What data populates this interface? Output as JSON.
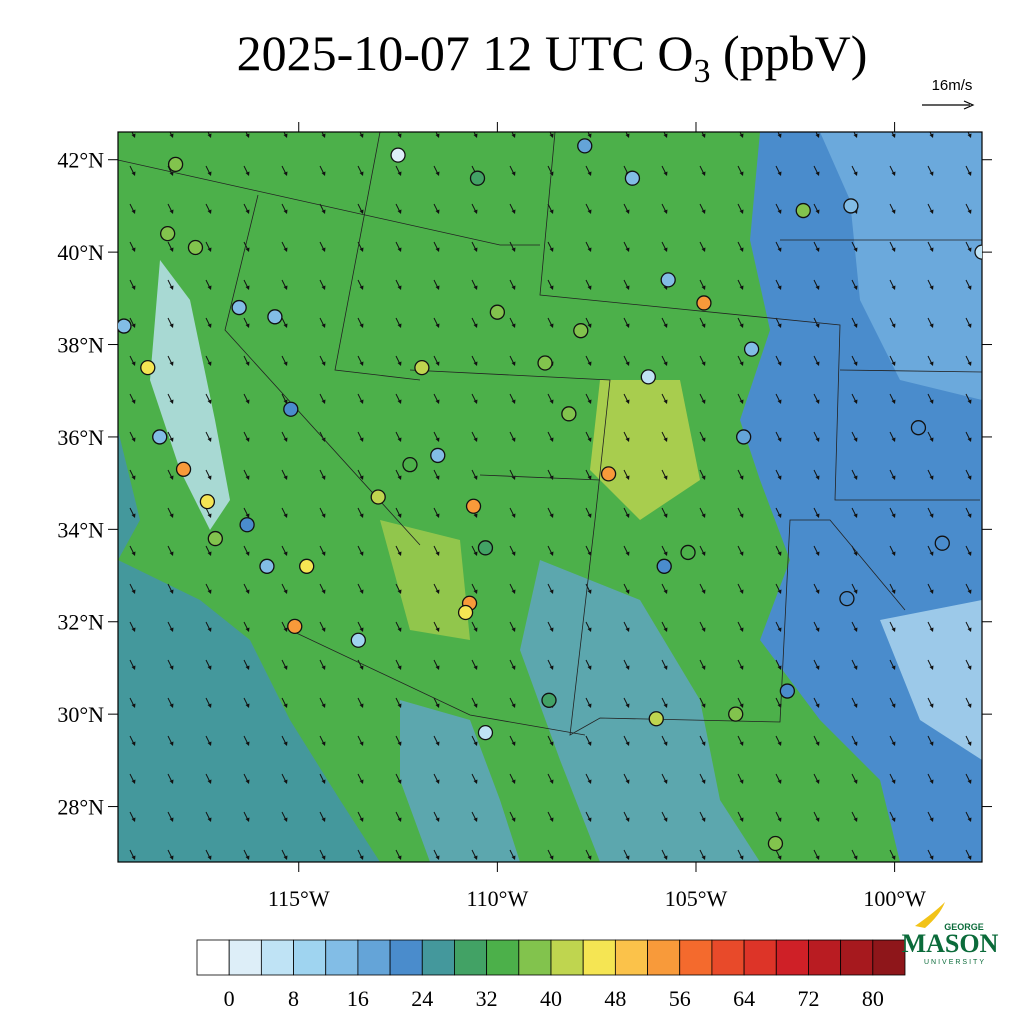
{
  "title": {
    "text": "2025-10-07 12 UTC O",
    "subscript": "3",
    "suffix": " (ppbV)"
  },
  "vector_reference": "16m/s",
  "lonlim": [
    -119.55,
    -97.8
  ],
  "latlim": [
    26.8,
    42.6
  ],
  "lat_ticks": [
    {
      "value": 42,
      "label": "42°N"
    },
    {
      "value": 40,
      "label": "40°N"
    },
    {
      "value": 38,
      "label": "38°N"
    },
    {
      "value": 36,
      "label": "36°N"
    },
    {
      "value": 34,
      "label": "34°N"
    },
    {
      "value": 32,
      "label": "32°N"
    },
    {
      "value": 30,
      "label": "30°N"
    },
    {
      "value": 28,
      "label": "28°N"
    }
  ],
  "lon_ticks": [
    {
      "value": -115,
      "label": "115°W"
    },
    {
      "value": -110,
      "label": "110°W"
    },
    {
      "value": -105,
      "label": "105°W"
    },
    {
      "value": -100,
      "label": "100°W"
    }
  ],
  "colorbar": {
    "lim": [
      -4,
      84
    ],
    "ticks": [
      0,
      8,
      16,
      24,
      32,
      40,
      48,
      56,
      64,
      72,
      80
    ],
    "colors": [
      "#ffffff",
      "#ddeef8",
      "#bfe3f5",
      "#9fd4f0",
      "#82bde6",
      "#64a4d8",
      "#4a8ccc",
      "#44989c",
      "#42a265",
      "#4cb04a",
      "#82c34d",
      "#bfd54f",
      "#f5e553",
      "#fbc24a",
      "#f89a3a",
      "#f46a2d",
      "#e84a2a",
      "#dd3428",
      "#cf2027",
      "#b91c22",
      "#a6191e",
      "#8e161a"
    ]
  },
  "stations": [
    {
      "lon": -112.5,
      "lat": 42.1,
      "value": 2
    },
    {
      "lon": -118.1,
      "lat": 41.9,
      "value": 38
    },
    {
      "lon": -118.3,
      "lat": 40.4,
      "value": 38
    },
    {
      "lon": -117.6,
      "lat": 40.1,
      "value": 36
    },
    {
      "lon": -118.8,
      "lat": 37.5,
      "value": 46
    },
    {
      "lon": -117.9,
      "lat": 35.3,
      "value": 54
    },
    {
      "lon": -117.3,
      "lat": 34.6,
      "value": 46
    },
    {
      "lon": -115.1,
      "lat": 31.9,
      "value": 54
    },
    {
      "lon": -114.8,
      "lat": 33.2,
      "value": 46
    },
    {
      "lon": -113.5,
      "lat": 31.6,
      "value": 10
    },
    {
      "lon": -110.6,
      "lat": 34.5,
      "value": 52
    },
    {
      "lon": -110.7,
      "lat": 32.4,
      "value": 52
    },
    {
      "lon": -110.8,
      "lat": 32.2,
      "value": 46
    },
    {
      "lon": -110.3,
      "lat": 29.6,
      "value": 6
    },
    {
      "lon": -112.2,
      "lat": 35.4,
      "value": 34
    },
    {
      "lon": -111.9,
      "lat": 37.5,
      "value": 40
    },
    {
      "lon": -113.0,
      "lat": 34.7,
      "value": 42
    },
    {
      "lon": -107.2,
      "lat": 35.2,
      "value": 52
    },
    {
      "lon": -104.8,
      "lat": 38.9,
      "value": 52
    },
    {
      "lon": -108.2,
      "lat": 36.5,
      "value": 38
    },
    {
      "lon": -108.8,
      "lat": 37.6,
      "value": 36
    },
    {
      "lon": -107.8,
      "lat": 42.3,
      "value": 16
    },
    {
      "lon": -106.2,
      "lat": 37.3,
      "value": 4
    },
    {
      "lon": -105.7,
      "lat": 39.4,
      "value": 14
    },
    {
      "lon": -103.6,
      "lat": 37.9,
      "value": 12
    },
    {
      "lon": -103.8,
      "lat": 36.0,
      "value": 18
    },
    {
      "lon": -101.1,
      "lat": 41.0,
      "value": 12
    },
    {
      "lon": -99.4,
      "lat": 36.2,
      "value": 20
    },
    {
      "lon": -98.8,
      "lat": 33.7,
      "value": 20
    },
    {
      "lon": -101.2,
      "lat": 32.5,
      "value": 20
    },
    {
      "lon": -102.7,
      "lat": 30.5,
      "value": 22
    },
    {
      "lon": -104.0,
      "lat": 30.0,
      "value": 36
    },
    {
      "lon": -106.0,
      "lat": 29.9,
      "value": 40
    },
    {
      "lon": -103.0,
      "lat": 27.2,
      "value": 36
    },
    {
      "lon": -105.2,
      "lat": 33.5,
      "value": 34
    },
    {
      "lon": -105.8,
      "lat": 33.2,
      "value": 20
    },
    {
      "lon": -110.3,
      "lat": 33.6,
      "value": 28
    },
    {
      "lon": -108.7,
      "lat": 30.3,
      "value": 28
    },
    {
      "lon": -115.2,
      "lat": 36.6,
      "value": 22
    },
    {
      "lon": -116.5,
      "lat": 38.8,
      "value": 14
    },
    {
      "lon": -115.6,
      "lat": 38.6,
      "value": 14
    },
    {
      "lon": -116.3,
      "lat": 34.1,
      "value": 22
    },
    {
      "lon": -117.1,
      "lat": 33.8,
      "value": 36
    },
    {
      "lon": -115.8,
      "lat": 33.2,
      "value": 12
    },
    {
      "lon": -111.5,
      "lat": 35.6,
      "value": 14
    },
    {
      "lon": -110.0,
      "lat": 38.7,
      "value": 36
    },
    {
      "lon": -107.9,
      "lat": 38.3,
      "value": 36
    },
    {
      "lon": -102.3,
      "lat": 40.9,
      "value": 36
    },
    {
      "lon": -97.8,
      "lat": 40.0,
      "value": 6
    },
    {
      "lon": -119.4,
      "lat": 38.4,
      "value": 14
    },
    {
      "lon": -118.5,
      "lat": 36.0,
      "value": 14
    },
    {
      "lon": -106.6,
      "lat": 41.6,
      "value": 14
    },
    {
      "lon": -110.5,
      "lat": 41.6,
      "value": 28
    }
  ],
  "logo": {
    "top": "GEORGE",
    "name": "MASON",
    "bottom": "UNIVERSITY"
  }
}
